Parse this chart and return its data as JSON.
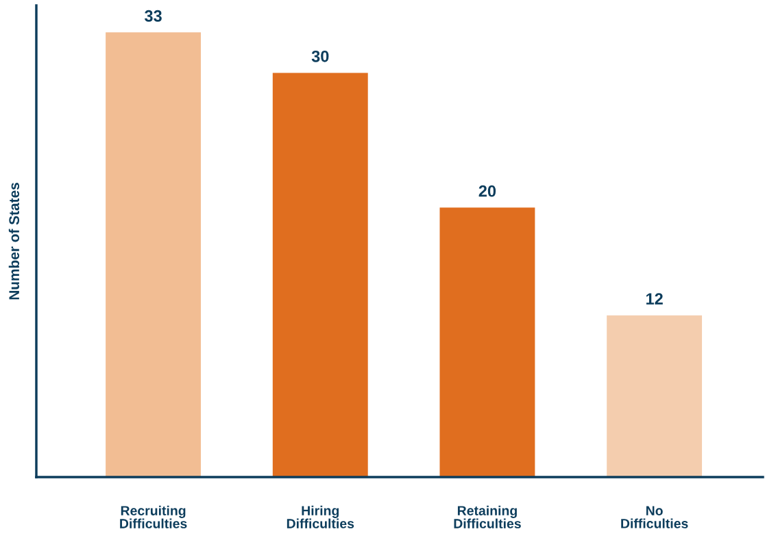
{
  "chart_data": {
    "type": "bar",
    "ylabel": "Number of States",
    "categories": [
      "Recruiting\nDifficulties",
      "Hiring\nDifficulties",
      "Retaining\nDifficulties",
      "No\nDifficulties"
    ],
    "values": [
      33,
      30,
      20,
      12
    ],
    "colors": [
      "#f2bd93",
      "#e06e1f",
      "#e06e1f",
      "#f4cdae"
    ],
    "ylim": [
      0,
      35
    ],
    "data_labels": true,
    "tick_labels": "x",
    "grid": false,
    "legend": false
  }
}
